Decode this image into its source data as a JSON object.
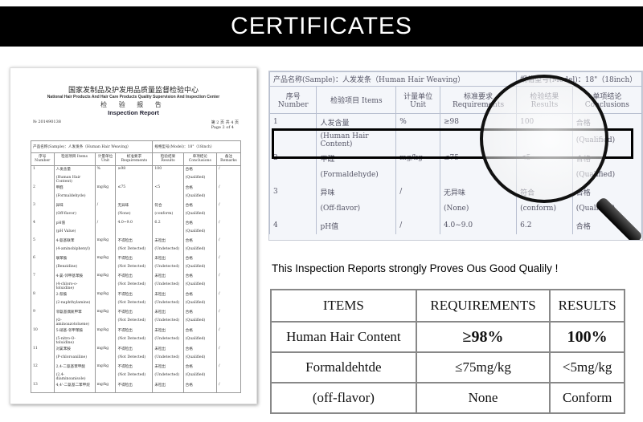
{
  "banner": {
    "title": "CERTIFICATES"
  },
  "report": {
    "org_cn": "国家发制品及护发用品质量监督检验中心",
    "org_en": "National Hair Products And Hair Care Products Quality Supervision And Inspection Center",
    "title_cn": "检 验 报 告",
    "title_en": "Inspection Report",
    "number": "№ 201490138",
    "page_cn": "第 2 页 共 4 页",
    "page_en": "Page 2 of 4",
    "sample": "产品名称(Sample)：人发发条（Human Hair Weaving）",
    "model": "规格型号(Model)：18\"（18inch）",
    "headers": [
      "序号 Number",
      "检验项目 Items",
      "计量单位 Unit",
      "标准要求 Requirements",
      "检验结果 Results",
      "单项结论 Conclusions",
      "备注 Remarks"
    ],
    "rows": [
      {
        "n": "1",
        "cn": "人发含量",
        "en": "(Human Hair Content)",
        "unit": "%",
        "req": "≥98",
        "req2": "",
        "res": "100",
        "res2": "",
        "con": "合格",
        "con2": "(Qualified)",
        "rem": "/"
      },
      {
        "n": "2",
        "cn": "甲醛",
        "en": "(Formaldehyde)",
        "unit": "mg/kg",
        "req": "≤75",
        "req2": "",
        "res": "<5",
        "res2": "",
        "con": "合格",
        "con2": "(Qualified)",
        "rem": "/"
      },
      {
        "n": "3",
        "cn": "异味",
        "en": "(Off-flavor)",
        "unit": "/",
        "req": "无异味",
        "req2": "(None)",
        "res": "符合",
        "res2": "(conform)",
        "con": "合格",
        "con2": "(Qualified)",
        "rem": "/"
      },
      {
        "n": "4",
        "cn": "pH值",
        "en": "(pH Value)",
        "unit": "/",
        "req": "4.0~9.0",
        "req2": "",
        "res": "6.2",
        "res2": "",
        "con": "合格",
        "con2": "(Qualified)",
        "rem": "/"
      },
      {
        "n": "5",
        "cn": "4-氨基联苯",
        "en": "(4-aminobiphenyl)",
        "unit": "mg/kg",
        "req": "不得检出",
        "req2": "(Not Detected)",
        "res": "未检出",
        "res2": "(Undetected)",
        "con": "合格",
        "con2": "(Qualified)",
        "rem": "/"
      },
      {
        "n": "6",
        "cn": "联苯胺",
        "en": "(Benzidine)",
        "unit": "mg/kg",
        "req": "不得检出",
        "req2": "(Not Detected)",
        "res": "未检出",
        "res2": "(Undetected)",
        "con": "合格",
        "con2": "(Qualified)",
        "rem": "/"
      },
      {
        "n": "7",
        "cn": "4-氯-邻甲基苯胺",
        "en": "(4-chloro-o-toluidine)",
        "unit": "mg/kg",
        "req": "不得检出",
        "req2": "(Not Detected)",
        "res": "未检出",
        "res2": "(Undetected)",
        "con": "合格",
        "con2": "(Qualified)",
        "rem": "/"
      },
      {
        "n": "8",
        "cn": "2-萘胺",
        "en": "(2-naphthylamine)",
        "unit": "mg/kg",
        "req": "不得检出",
        "req2": "(Not Detected)",
        "res": "未检出",
        "res2": "(Undetected)",
        "con": "合格",
        "con2": "(Qualified)",
        "rem": "/"
      },
      {
        "n": "9",
        "cn": "邻氨基偶氮甲苯",
        "en": "(O-aminoazotoluene)",
        "unit": "mg/kg",
        "req": "不得检出",
        "req2": "(Not Detected)",
        "res": "未检出",
        "res2": "(Undetected)",
        "con": "合格",
        "con2": "(Qualified)",
        "rem": "/"
      },
      {
        "n": "10",
        "cn": "5-硝基-邻甲苯胺",
        "en": "(5-nitro-O-toluidine)",
        "unit": "mg/kg",
        "req": "不得检出",
        "req2": "(Not Detected)",
        "res": "未检出",
        "res2": "(Undetected)",
        "con": "合格",
        "con2": "(Qualified)",
        "rem": "/"
      },
      {
        "n": "11",
        "cn": "对氯苯胺",
        "en": "(P-chloroaniline)",
        "unit": "mg/kg",
        "req": "不得检出",
        "req2": "(Not Detected)",
        "res": "未检出",
        "res2": "(Undetected)",
        "con": "合格",
        "con2": "(Qualified)",
        "rem": "/"
      },
      {
        "n": "12",
        "cn": "2,4-二氨基苯甲醚",
        "en": "(2,4-diaminoanisole)",
        "unit": "mg/kg",
        "req": "不得检出",
        "req2": "(Not Detected)",
        "res": "未检出",
        "res2": "(Undetected)",
        "con": "合格",
        "con2": "(Qualified)",
        "rem": "/"
      },
      {
        "n": "13",
        "cn": "4,4'-二氨基二苯甲烷",
        "en": "",
        "unit": "mg/kg",
        "req": "不得检出",
        "req2": "",
        "res": "未检出",
        "res2": "",
        "con": "合格",
        "con2": "",
        "rem": "/"
      }
    ]
  },
  "zoomed": {
    "sample": "产品名称(Sample)：人发发条（Human Hair Weaving）",
    "model": "规格型号(Model)：18\"（18inch）",
    "headers": [
      "序号 Number",
      "检验项目 Items",
      "计量单位 Unit",
      "标准要求 Requirements",
      "检验结果 Results",
      "单项结论 Conclusions"
    ]
  },
  "caption": "This Inspection Reports strongly Proves Ous Good Qualily !",
  "summary": {
    "headers": [
      "ITEMS",
      "REQUIREMENTS",
      "RESULTS"
    ],
    "rows": [
      [
        "Human Hair Content",
        "≥98%",
        "100%"
      ],
      [
        "Formaldehtde",
        "≤75mg/kg",
        "<5mg/kg"
      ],
      [
        "(off-flavor)",
        "None",
        "Conform"
      ]
    ]
  }
}
